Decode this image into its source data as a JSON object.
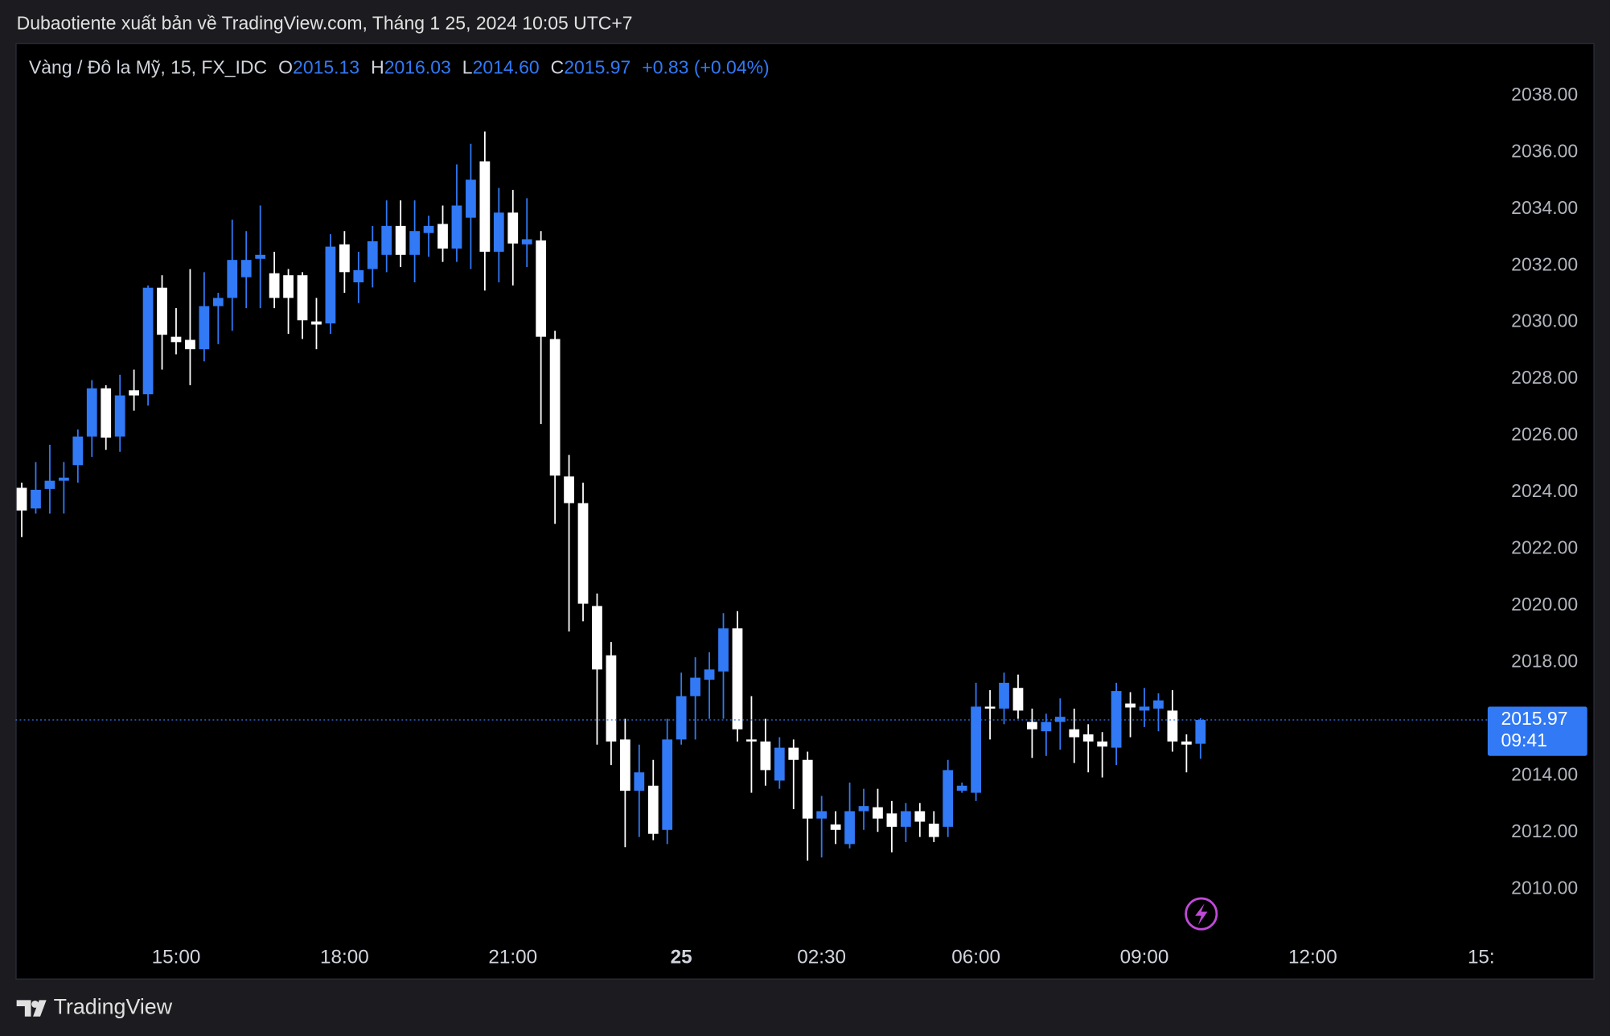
{
  "chart_data": {
    "type": "candlestick",
    "source": "Dubaotiente xuất bản về TradingView.com, Tháng 1 25, 2024 10:05 UTC+7",
    "legend": {
      "symbol": "Vàng / Đô la Mỹ, 15, FX_IDC",
      "ohlc": [
        {
          "label": "O",
          "value": "2015.13"
        },
        {
          "label": "H",
          "value": "2016.03"
        },
        {
          "label": "L",
          "value": "2014.60"
        },
        {
          "label": "C",
          "value": "2015.97"
        }
      ],
      "change": "+0.83 (+0.04%)"
    },
    "brand": "TradingView",
    "up_color": "#3179f5",
    "down_color": "#ffffff",
    "categories": [
      null,
      null,
      null,
      null,
      null,
      null,
      null,
      null,
      null,
      null,
      null,
      "15:00",
      null,
      null,
      null,
      null,
      null,
      null,
      null,
      null,
      null,
      null,
      null,
      "18:00",
      null,
      null,
      null,
      null,
      null,
      null,
      null,
      null,
      null,
      null,
      null,
      "21:00",
      null,
      null,
      null,
      null,
      null,
      null,
      null,
      null,
      null,
      null,
      null,
      "25",
      null,
      null,
      null,
      null,
      null,
      null,
      null,
      null,
      null,
      "02:30",
      null,
      null,
      null,
      null,
      null,
      null,
      null,
      null,
      null,
      null,
      "06:00",
      null,
      null,
      null,
      null,
      null,
      null,
      null,
      null,
      null,
      null,
      null,
      "09:00",
      null,
      null,
      null,
      null,
      null,
      null,
      null,
      null,
      null,
      null,
      null,
      "12:00",
      null,
      null,
      null,
      null,
      null,
      null,
      null,
      null,
      null,
      null,
      null,
      "15:"
    ],
    "open": [
      2024.16,
      2023.43,
      2024.12,
      2024.41,
      2024.96,
      2025.97,
      2027.67,
      2025.97,
      2027.6,
      2027.46,
      2031.22,
      2029.49,
      2029.38,
      2029.05,
      2030.57,
      2030.86,
      2031.59,
      2032.24,
      2031.73,
      2031.66,
      2031.66,
      2030.03,
      2029.96,
      2032.75,
      2031.41,
      2031.88,
      2032.38,
      2033.4,
      2032.38,
      2033.15,
      2033.47,
      2032.6,
      2033.69,
      2035.68,
      2032.49,
      2033.87,
      2032.75,
      2032.89,
      2029.41,
      2024.56,
      2023.62,
      2019.99,
      2018.25,
      2015.28,
      2013.47,
      2013.65,
      2012.09,
      2015.28,
      2016.81,
      2017.39,
      2017.68,
      2019.2,
      2015.28,
      2015.21,
      2013.83,
      2014.99,
      2014.56,
      2012.49,
      2012.28,
      2011.59,
      2012.75,
      2012.89,
      2012.67,
      2012.2,
      2012.75,
      2012.31,
      2012.2,
      2013.47,
      2013.4,
      2016.44,
      2016.37,
      2017.1,
      2015.9,
      2015.57,
      2015.9,
      2015.64,
      2015.46,
      2015.21,
      2014.99,
      2016.55,
      2016.3,
      2016.37,
      2016.3,
      2015.21,
      2015.13,
      null,
      null,
      null,
      null,
      null,
      null,
      null,
      null,
      null,
      null,
      null,
      null,
      null,
      null,
      null,
      null,
      null,
      null,
      null,
      null
    ],
    "high": [
      2024.34,
      2025.07,
      2025.68,
      2025.07,
      2026.22,
      2027.96,
      2027.78,
      2028.15,
      2028.33,
      2031.3,
      2031.66,
      2030.5,
      2031.88,
      2031.77,
      2031.04,
      2033.62,
      2033.22,
      2034.12,
      2032.49,
      2031.88,
      2031.77,
      2030.86,
      2033.11,
      2033.22,
      2032.49,
      2033.4,
      2034.3,
      2034.3,
      2034.3,
      2033.76,
      2034.12,
      2035.57,
      2036.3,
      2036.73,
      2034.74,
      2034.67,
      2034.38,
      2033.22,
      2029.7,
      2025.32,
      2024.34,
      2020.43,
      2018.72,
      2016.01,
      2015.1,
      2014.56,
      2016.01,
      2017.64,
      2018.18,
      2018.36,
      2019.74,
      2019.81,
      2016.81,
      2016.01,
      2015.36,
      2015.28,
      2014.85,
      2013.29,
      2012.75,
      2013.76,
      2013.54,
      2013.54,
      2013.11,
      2013.04,
      2013.04,
      2012.75,
      2014.56,
      2013.76,
      2017.28,
      2017.02,
      2017.64,
      2017.57,
      2016.37,
      2016.19,
      2016.73,
      2016.37,
      2015.82,
      2015.54,
      2017.28,
      2016.95,
      2017.1,
      2016.91,
      2017.02,
      2015.46,
      2016.03,
      null,
      null,
      null,
      null,
      null,
      null,
      null,
      null,
      null,
      null,
      null,
      null,
      null,
      null,
      null,
      null,
      null,
      null,
      null,
      null
    ],
    "low": [
      2022.42,
      2023.25,
      2023.25,
      2023.25,
      2024.34,
      2025.25,
      2025.5,
      2025.43,
      2026.88,
      2027.06,
      2028.33,
      2028.87,
      2027.78,
      2028.62,
      2029.23,
      2029.7,
      2030.5,
      2030.5,
      2030.5,
      2029.59,
      2029.41,
      2029.05,
      2029.59,
      2031.04,
      2030.68,
      2031.23,
      2031.77,
      2031.95,
      2031.41,
      2032.31,
      2032.13,
      2032.13,
      2031.88,
      2031.12,
      2031.41,
      2031.3,
      2031.95,
      2026.41,
      2022.89,
      2019.09,
      2019.45,
      2015.1,
      2014.38,
      2011.48,
      2011.84,
      2011.73,
      2011.59,
      2015.1,
      2015.28,
      2016.01,
      2016.01,
      2015.21,
      2013.4,
      2013.65,
      2013.54,
      2012.82,
      2011.01,
      2011.12,
      2011.59,
      2011.44,
      2012.09,
      2012.02,
      2011.3,
      2011.66,
      2011.84,
      2011.66,
      2011.84,
      2013.4,
      2013.11,
      2015.28,
      2015.82,
      2016.01,
      2014.63,
      2014.7,
      2014.92,
      2014.45,
      2014.12,
      2013.94,
      2014.38,
      2015.36,
      2015.72,
      2015.57,
      2014.85,
      2014.12,
      2014.6,
      null,
      null,
      null,
      null,
      null,
      null,
      null,
      null,
      null,
      null,
      null,
      null,
      null,
      null,
      null,
      null,
      null,
      null,
      null,
      null
    ],
    "close": [
      2023.36,
      2024.09,
      2024.41,
      2024.52,
      2025.97,
      2027.67,
      2025.93,
      2027.42,
      2027.42,
      2031.22,
      2029.56,
      2029.3,
      2029.05,
      2030.57,
      2030.86,
      2032.2,
      2032.2,
      2032.38,
      2030.86,
      2030.86,
      2030.07,
      2029.92,
      2032.67,
      2031.77,
      2031.84,
      2032.86,
      2033.4,
      2032.38,
      2033.22,
      2033.4,
      2032.6,
      2034.12,
      2035.03,
      2032.49,
      2033.87,
      2032.78,
      2032.93,
      2029.49,
      2024.59,
      2023.62,
      2020.07,
      2017.75,
      2015.21,
      2013.47,
      2014.12,
      2011.95,
      2015.28,
      2016.81,
      2017.46,
      2017.75,
      2019.2,
      2015.64,
      2015.21,
      2014.2,
      2014.99,
      2014.56,
      2012.49,
      2012.75,
      2012.09,
      2012.75,
      2012.93,
      2012.49,
      2012.2,
      2012.75,
      2012.38,
      2011.84,
      2014.2,
      2013.65,
      2016.44,
      2016.37,
      2017.28,
      2016.3,
      2015.64,
      2015.9,
      2016.08,
      2015.36,
      2015.21,
      2015.03,
      2016.99,
      2016.41,
      2016.44,
      2016.66,
      2015.21,
      2015.1,
      2015.97,
      null,
      null,
      null,
      null,
      null,
      null,
      null,
      null,
      null,
      null,
      null,
      null,
      null,
      null,
      null,
      null,
      null,
      null,
      null,
      null
    ],
    "ylim": [
      2008.6,
      2039.85
    ],
    "yticks": [
      {
        "value": 2010,
        "label": "2010.00"
      },
      {
        "value": 2012,
        "label": "2012.00"
      },
      {
        "value": 2014,
        "label": "2014.00"
      },
      {
        "value": 2018,
        "label": "2018.00"
      },
      {
        "value": 2020,
        "label": "2020.00"
      },
      {
        "value": 2022,
        "label": "2022.00"
      },
      {
        "value": 2024,
        "label": "2024.00"
      },
      {
        "value": 2026,
        "label": "2026.00"
      },
      {
        "value": 2028,
        "label": "2028.00"
      },
      {
        "value": 2030,
        "label": "2030.00"
      },
      {
        "value": 2032,
        "label": "2032.00"
      },
      {
        "value": 2034,
        "label": "2034.00"
      },
      {
        "value": 2036,
        "label": "2036.00"
      },
      {
        "value": 2038,
        "label": "2038.00"
      }
    ],
    "last_price": 2015.97,
    "countdown": "09:41",
    "grid": false
  }
}
